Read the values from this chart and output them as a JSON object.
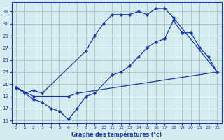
{
  "title": "Graphe des températures (°c)",
  "bg_color": "#d6ecee",
  "grid_color": "#aacccc",
  "line_color": "#1a3aaa",
  "xlim": [
    -0.5,
    23.5
  ],
  "ylim": [
    14.5,
    34.5
  ],
  "xticks": [
    0,
    1,
    2,
    3,
    4,
    5,
    6,
    7,
    8,
    9,
    10,
    11,
    12,
    13,
    14,
    15,
    16,
    17,
    18,
    19,
    20,
    21,
    22,
    23
  ],
  "yticks": [
    15,
    17,
    19,
    21,
    23,
    25,
    27,
    29,
    31,
    33
  ],
  "line1_x": [
    0,
    1,
    2,
    3,
    8,
    9,
    10,
    11,
    12,
    13,
    14,
    15,
    16,
    17,
    18,
    23
  ],
  "line1_y": [
    20.5,
    19.5,
    20,
    19.5,
    26.5,
    29,
    31,
    32.5,
    32.5,
    32.5,
    33,
    32.5,
    33.5,
    33.5,
    32,
    23
  ],
  "line2_x": [
    0,
    2,
    3,
    4,
    5,
    6,
    7,
    8,
    9,
    11,
    12,
    13,
    14,
    15,
    16,
    17,
    18,
    19,
    20,
    21,
    22,
    23
  ],
  "line2_y": [
    20.5,
    18.5,
    18,
    17,
    16.5,
    15.2,
    17,
    19,
    19.5,
    22.5,
    23,
    24,
    25.5,
    27,
    28,
    28.5,
    31.5,
    29.5,
    29.5,
    27,
    25.5,
    23
  ],
  "line3_x": [
    0,
    2,
    6,
    7,
    23
  ],
  "line3_y": [
    20.5,
    19,
    19,
    19.5,
    23
  ]
}
